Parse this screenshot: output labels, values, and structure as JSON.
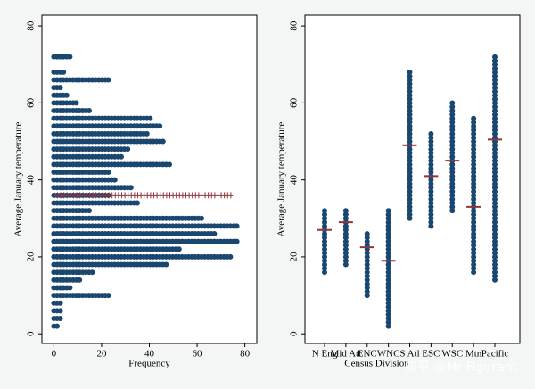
{
  "chart_data": [
    {
      "type": "hbar",
      "ylabel": "Average January temperature",
      "xlabel": "Frequency",
      "y": [
        72,
        68,
        66,
        64,
        62,
        60,
        58,
        56,
        54,
        52,
        50,
        48,
        46,
        44,
        42,
        40,
        38,
        36,
        34,
        32,
        30,
        28,
        26,
        24,
        22,
        20,
        18,
        16,
        14,
        12,
        10,
        8,
        6,
        4,
        2
      ],
      "values": [
        8,
        5,
        23,
        3,
        6,
        10,
        15,
        41,
        45,
        39,
        47,
        31,
        29,
        49,
        24,
        26,
        33,
        23,
        36,
        15,
        63,
        77,
        68,
        77,
        53,
        75,
        48,
        17,
        11,
        8,
        23,
        3,
        4,
        3,
        2
      ],
      "color": "#1a476f",
      "mean": 36,
      "mean_color": "#90353b",
      "xlim": [
        -5,
        85
      ],
      "ylim": [
        -2.5,
        82.8
      ],
      "xticks": [
        0,
        20,
        40,
        60,
        80
      ],
      "yticks": [
        0,
        20,
        40,
        60,
        80
      ]
    },
    {
      "type": "dot",
      "ylabel": "Average January temperature",
      "xlabel": "Census Division",
      "categories": [
        "N Eng",
        "Mid Atl",
        "ENC",
        "WNC",
        "S Atl",
        "ESC",
        "WSC",
        "Mtn",
        "Pacific"
      ],
      "min": [
        16,
        18,
        10,
        2,
        30,
        28,
        32,
        16,
        14
      ],
      "max": [
        32,
        32,
        26,
        32,
        68,
        52,
        60,
        56,
        72
      ],
      "mean": [
        27,
        29,
        22.5,
        19,
        49,
        41,
        45,
        33,
        50.5
      ],
      "color": "#1a476f",
      "mean_color": "#90353b",
      "ylim": [
        -2.5,
        82.8
      ],
      "yticks": [
        0,
        20,
        40,
        60,
        80
      ]
    }
  ],
  "watermark": "知乎 @Mr Figurant"
}
